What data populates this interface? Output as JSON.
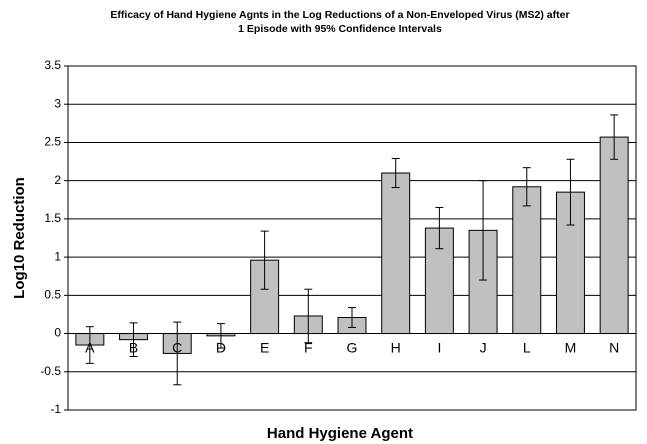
{
  "chart_data": {
    "type": "bar",
    "title": [
      "Efficacy of Hand Hygiene Agnts in the Log Reductions of a Non-Enveloped Virus (MS2) after",
      "1 Episode with 95% Confidence Intervals"
    ],
    "x_label": "Hand Hygiene Agent",
    "y_label": "Log10 Reduction",
    "categories": [
      "A",
      "B",
      "C",
      "D",
      "E",
      "F",
      "G",
      "H",
      "I",
      "J",
      "L",
      "M",
      "N"
    ],
    "values": [
      -0.15,
      -0.08,
      -0.26,
      -0.03,
      0.96,
      0.23,
      0.21,
      2.1,
      1.38,
      1.35,
      1.92,
      1.85,
      2.57
    ],
    "errors": [
      0.24,
      0.22,
      0.41,
      0.16,
      0.38,
      0.35,
      0.13,
      0.19,
      0.27,
      0.65,
      0.25,
      0.43,
      0.29
    ],
    "color": "#c0c0c0",
    "ylim": [
      -1,
      3.5
    ],
    "yticks": [
      -1,
      -0.5,
      0,
      0.5,
      1,
      1.5,
      2,
      2.5,
      3,
      3.5
    ],
    "grid": true
  }
}
